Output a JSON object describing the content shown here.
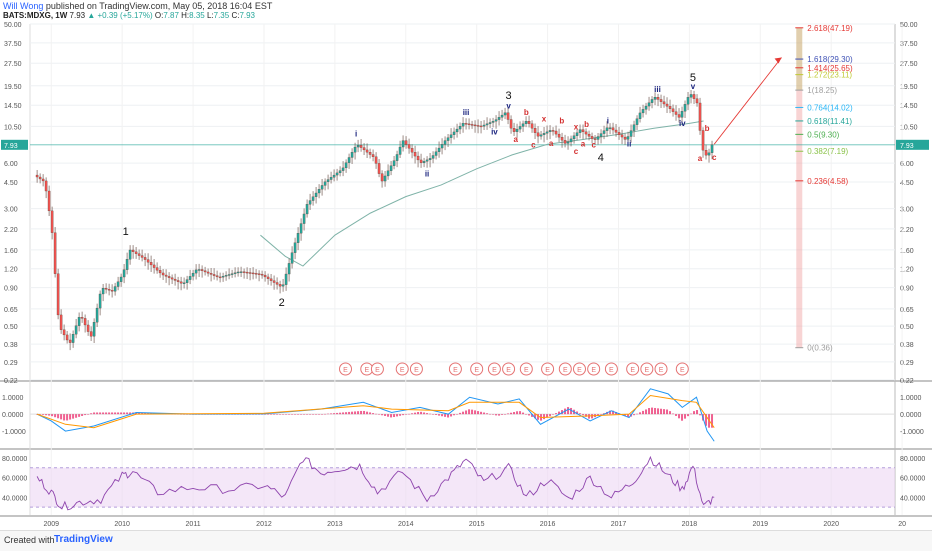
{
  "header": {
    "author": "Will Wong",
    "published": " published on TradingView.com, May 05, 2018 16:04 EST",
    "symbol": "BATS:MDXG, 1W",
    "last": "7.93",
    "change": "▲ +0.39 (+5.17%)",
    "ohlc_o_label": "O:",
    "ohlc_o": "7.87",
    "ohlc_h_label": "H:",
    "ohlc_h": "8.35",
    "ohlc_l_label": "L:",
    "ohlc_l": "7.35",
    "ohlc_c_label": "C:",
    "ohlc_c": "7.93"
  },
  "footer": {
    "created_with": "Created with",
    "brand": "TradingView"
  },
  "colors": {
    "up": "#26a69a",
    "down": "#ef5350",
    "candle_body": "#5d4037",
    "ma": "#7fb3a8",
    "fib_bar_top": "#c8a86b",
    "fib_bar_bottom": "#f0a0a0",
    "rsi_fill": "#ecd7f4",
    "rsi_line": "#8e44ad",
    "macd_hist": "#e91e63",
    "macd_line": "#2196f3",
    "signal_line": "#ff9800"
  },
  "chart_data": {
    "type": "line",
    "title": "",
    "y_scale": "log",
    "price_axis_ticks": [
      "50.00",
      "37.50",
      "27.50",
      "19.50",
      "14.50",
      "10.50",
      "7.93",
      "6.00",
      "4.50",
      "3.00",
      "2.20",
      "1.60",
      "1.20",
      "0.90",
      "0.65",
      "0.50",
      "0.38",
      "0.29",
      "0.22"
    ],
    "x_ticks": [
      "2009",
      "2010",
      "2011",
      "2012",
      "2013",
      "2014",
      "2015",
      "2016",
      "2017",
      "2018",
      "2019",
      "2020",
      "20"
    ],
    "last_price_label": "7.93",
    "price_path": [
      {
        "x": 2008.8,
        "y": 5.0
      },
      {
        "x": 2008.95,
        "y": 4.5
      },
      {
        "x": 2009.05,
        "y": 2.2
      },
      {
        "x": 2009.15,
        "y": 0.5
      },
      {
        "x": 2009.3,
        "y": 0.38
      },
      {
        "x": 2009.45,
        "y": 0.6
      },
      {
        "x": 2009.6,
        "y": 0.42
      },
      {
        "x": 2009.75,
        "y": 0.9
      },
      {
        "x": 2009.9,
        "y": 0.85
      },
      {
        "x": 2010.05,
        "y": 1.1
      },
      {
        "x": 2010.15,
        "y": 1.6
      },
      {
        "x": 2010.35,
        "y": 1.4
      },
      {
        "x": 2010.6,
        "y": 1.1
      },
      {
        "x": 2010.9,
        "y": 0.95
      },
      {
        "x": 2011.1,
        "y": 1.2
      },
      {
        "x": 2011.4,
        "y": 1.05
      },
      {
        "x": 2011.7,
        "y": 1.15
      },
      {
        "x": 2012.0,
        "y": 1.1
      },
      {
        "x": 2012.3,
        "y": 0.9
      },
      {
        "x": 2012.45,
        "y": 1.6
      },
      {
        "x": 2012.65,
        "y": 3.2
      },
      {
        "x": 2012.9,
        "y": 4.5
      },
      {
        "x": 2013.15,
        "y": 5.5
      },
      {
        "x": 2013.35,
        "y": 8.0
      },
      {
        "x": 2013.6,
        "y": 6.5
      },
      {
        "x": 2013.7,
        "y": 4.5
      },
      {
        "x": 2013.9,
        "y": 6.5
      },
      {
        "x": 2014.0,
        "y": 8.5
      },
      {
        "x": 2014.25,
        "y": 6.0
      },
      {
        "x": 2014.4,
        "y": 6.5
      },
      {
        "x": 2014.6,
        "y": 8.5
      },
      {
        "x": 2014.85,
        "y": 11.0
      },
      {
        "x": 2015.1,
        "y": 10.5
      },
      {
        "x": 2015.3,
        "y": 11.5
      },
      {
        "x": 2015.45,
        "y": 13.0
      },
      {
        "x": 2015.55,
        "y": 9.5
      },
      {
        "x": 2015.75,
        "y": 11.5
      },
      {
        "x": 2015.9,
        "y": 9.0
      },
      {
        "x": 2016.1,
        "y": 10.0
      },
      {
        "x": 2016.3,
        "y": 8.0
      },
      {
        "x": 2016.5,
        "y": 10.0
      },
      {
        "x": 2016.7,
        "y": 8.5
      },
      {
        "x": 2016.9,
        "y": 10.5
      },
      {
        "x": 2017.15,
        "y": 8.5
      },
      {
        "x": 2017.35,
        "y": 13.0
      },
      {
        "x": 2017.55,
        "y": 16.5
      },
      {
        "x": 2017.75,
        "y": 14.0
      },
      {
        "x": 2017.9,
        "y": 12.0
      },
      {
        "x": 2018.05,
        "y": 17.5
      },
      {
        "x": 2018.15,
        "y": 15.0
      },
      {
        "x": 2018.22,
        "y": 7.5
      },
      {
        "x": 2018.3,
        "y": 6.5
      },
      {
        "x": 2018.35,
        "y": 7.93
      }
    ],
    "moving_average": [
      {
        "x": 2011.95,
        "y": 2.0
      },
      {
        "x": 2012.3,
        "y": 1.45
      },
      {
        "x": 2012.55,
        "y": 1.25
      },
      {
        "x": 2013.0,
        "y": 2.0
      },
      {
        "x": 2013.5,
        "y": 2.8
      },
      {
        "x": 2014.0,
        "y": 3.6
      },
      {
        "x": 2014.5,
        "y": 4.3
      },
      {
        "x": 2015.0,
        "y": 5.5
      },
      {
        "x": 2015.5,
        "y": 6.8
      },
      {
        "x": 2016.0,
        "y": 8.0
      },
      {
        "x": 2016.5,
        "y": 8.6
      },
      {
        "x": 2017.0,
        "y": 9.3
      },
      {
        "x": 2017.5,
        "y": 10.2
      },
      {
        "x": 2018.0,
        "y": 11.0
      },
      {
        "x": 2018.2,
        "y": 11.4
      }
    ],
    "projection": {
      "from": {
        "x": 2018.35,
        "y": 8.0
      },
      "to": {
        "x": 2019.3,
        "y": 30.0
      }
    },
    "fib_levels": [
      {
        "label": "2.618(47.19)",
        "value": 47.19,
        "color": "#e53935"
      },
      {
        "label": "1.618(29.30)",
        "value": 29.3,
        "color": "#3f51b5"
      },
      {
        "label": "1.414(25.65)",
        "value": 25.65,
        "color": "#e53935"
      },
      {
        "label": "1.272(23.11)",
        "value": 23.11,
        "color": "#c0ca33"
      },
      {
        "label": "1(18.25)",
        "value": 18.25,
        "color": "#9e9e9e"
      },
      {
        "label": "0.764(14.02)",
        "value": 14.02,
        "color": "#29b6f6"
      },
      {
        "label": "0.618(11.41)",
        "value": 11.41,
        "color": "#26a69a"
      },
      {
        "label": "0.5(9.30)",
        "value": 9.3,
        "color": "#4caf50"
      },
      {
        "label": "0.382(7.19)",
        "value": 7.19,
        "color": "#8bc34a"
      },
      {
        "label": "0.236(4.58)",
        "value": 4.58,
        "color": "#e53935"
      },
      {
        "label": "0(0.36)",
        "value": 0.36,
        "color": "#9e9e9e"
      }
    ],
    "wave_labels": [
      {
        "text": "1",
        "x": 2010.05,
        "y": 2.0,
        "color": "#111",
        "size": 11
      },
      {
        "text": "2",
        "x": 2012.25,
        "y": 0.68,
        "color": "#111",
        "size": 11
      },
      {
        "text": "3",
        "x": 2015.45,
        "y": 16.0,
        "color": "#111",
        "size": 11
      },
      {
        "text": "4",
        "x": 2016.75,
        "y": 6.2,
        "color": "#111",
        "size": 11
      },
      {
        "text": "5",
        "x": 2018.05,
        "y": 21.0,
        "color": "#111",
        "size": 11
      },
      {
        "text": "i",
        "x": 2013.3,
        "y": 9.0,
        "color": "#1a237e",
        "size": 8
      },
      {
        "text": "ii",
        "x": 2014.3,
        "y": 4.9,
        "color": "#1a237e",
        "size": 8
      },
      {
        "text": "iii",
        "x": 2014.85,
        "y": 12.5,
        "color": "#1a237e",
        "size": 8
      },
      {
        "text": "iv",
        "x": 2015.25,
        "y": 9.3,
        "color": "#1a237e",
        "size": 8
      },
      {
        "text": "v",
        "x": 2015.45,
        "y": 13.8,
        "color": "#1a237e",
        "size": 8
      },
      {
        "text": "i",
        "x": 2016.85,
        "y": 11.0,
        "color": "#1a237e",
        "size": 8
      },
      {
        "text": "ii",
        "x": 2017.15,
        "y": 7.7,
        "color": "#1a237e",
        "size": 8
      },
      {
        "text": "iii",
        "x": 2017.55,
        "y": 17.8,
        "color": "#1a237e",
        "size": 8
      },
      {
        "text": "iv",
        "x": 2017.9,
        "y": 10.6,
        "color": "#1a237e",
        "size": 8
      },
      {
        "text": "v",
        "x": 2018.05,
        "y": 18.5,
        "color": "#1a237e",
        "size": 8
      },
      {
        "text": "a",
        "x": 2015.55,
        "y": 8.3,
        "color": "#d32f2f",
        "size": 8
      },
      {
        "text": "b",
        "x": 2015.7,
        "y": 12.5,
        "color": "#d32f2f",
        "size": 8
      },
      {
        "text": "c",
        "x": 2015.8,
        "y": 7.6,
        "color": "#d32f2f",
        "size": 8
      },
      {
        "text": "x",
        "x": 2015.95,
        "y": 11.3,
        "color": "#d32f2f",
        "size": 8
      },
      {
        "text": "a",
        "x": 2016.05,
        "y": 7.8,
        "color": "#d32f2f",
        "size": 8
      },
      {
        "text": "b",
        "x": 2016.2,
        "y": 11.0,
        "color": "#d32f2f",
        "size": 8
      },
      {
        "text": "c",
        "x": 2016.4,
        "y": 6.9,
        "color": "#d32f2f",
        "size": 8
      },
      {
        "text": "x",
        "x": 2016.4,
        "y": 10.0,
        "color": "#d32f2f",
        "size": 8
      },
      {
        "text": "a",
        "x": 2016.5,
        "y": 7.7,
        "color": "#d32f2f",
        "size": 8
      },
      {
        "text": "b",
        "x": 2016.55,
        "y": 10.4,
        "color": "#d32f2f",
        "size": 8
      },
      {
        "text": "c",
        "x": 2016.65,
        "y": 7.6,
        "color": "#d32f2f",
        "size": 8
      },
      {
        "text": "b",
        "x": 2018.25,
        "y": 9.8,
        "color": "#d32f2f",
        "size": 8
      },
      {
        "text": "a",
        "x": 2018.15,
        "y": 6.2,
        "color": "#d32f2f",
        "size": 8
      },
      {
        "text": "c",
        "x": 2018.35,
        "y": 6.3,
        "color": "#d32f2f",
        "size": 8
      }
    ],
    "earnings_markers": {
      "label": "E",
      "x": [
        2013.15,
        2013.45,
        2013.6,
        2013.95,
        2014.15,
        2014.7,
        2015.0,
        2015.25,
        2015.45,
        2015.7,
        2016.0,
        2016.25,
        2016.45,
        2016.65,
        2016.9,
        2017.2,
        2017.4,
        2017.6,
        2017.9
      ]
    },
    "macd": {
      "ticks": [
        "1.0000",
        "0.0000",
        "-1.0000"
      ],
      "line": [
        {
          "x": 2008.8,
          "y": 0.0
        },
        {
          "x": 2009.0,
          "y": -0.4
        },
        {
          "x": 2009.2,
          "y": -1.0
        },
        {
          "x": 2009.6,
          "y": -0.7
        },
        {
          "x": 2010.2,
          "y": 0.1
        },
        {
          "x": 2011.0,
          "y": 0.0
        },
        {
          "x": 2012.0,
          "y": 0.02
        },
        {
          "x": 2012.8,
          "y": 0.3
        },
        {
          "x": 2013.4,
          "y": 0.7
        },
        {
          "x": 2013.8,
          "y": 0.1
        },
        {
          "x": 2014.2,
          "y": 0.4
        },
        {
          "x": 2014.6,
          "y": 0.0
        },
        {
          "x": 2014.9,
          "y": 1.0
        },
        {
          "x": 2015.3,
          "y": 0.6
        },
        {
          "x": 2015.6,
          "y": 0.9
        },
        {
          "x": 2015.9,
          "y": -0.6
        },
        {
          "x": 2016.3,
          "y": 0.3
        },
        {
          "x": 2016.6,
          "y": -0.4
        },
        {
          "x": 2016.9,
          "y": 0.2
        },
        {
          "x": 2017.15,
          "y": -0.2
        },
        {
          "x": 2017.45,
          "y": 1.5
        },
        {
          "x": 2017.7,
          "y": 1.2
        },
        {
          "x": 2017.9,
          "y": 0.4
        },
        {
          "x": 2018.1,
          "y": 1.0
        },
        {
          "x": 2018.25,
          "y": -1.0
        },
        {
          "x": 2018.35,
          "y": -1.6
        }
      ],
      "signal": [
        {
          "x": 2008.8,
          "y": 0.0
        },
        {
          "x": 2009.2,
          "y": -0.6
        },
        {
          "x": 2009.6,
          "y": -0.8
        },
        {
          "x": 2010.2,
          "y": 0.0
        },
        {
          "x": 2012.0,
          "y": 0.05
        },
        {
          "x": 2013.4,
          "y": 0.5
        },
        {
          "x": 2013.8,
          "y": 0.3
        },
        {
          "x": 2014.6,
          "y": 0.2
        },
        {
          "x": 2014.9,
          "y": 0.7
        },
        {
          "x": 2015.6,
          "y": 0.7
        },
        {
          "x": 2015.9,
          "y": -0.2
        },
        {
          "x": 2016.6,
          "y": -0.1
        },
        {
          "x": 2017.15,
          "y": 0.0
        },
        {
          "x": 2017.45,
          "y": 1.1
        },
        {
          "x": 2017.9,
          "y": 0.8
        },
        {
          "x": 2018.1,
          "y": 0.7
        },
        {
          "x": 2018.35,
          "y": -0.8
        }
      ]
    },
    "rsi": {
      "ticks": [
        "80.0000",
        "60.0000",
        "40.0000"
      ],
      "upper": 70,
      "lower": 30,
      "line": [
        {
          "x": 2008.8,
          "y": 60
        },
        {
          "x": 2009.0,
          "y": 45
        },
        {
          "x": 2009.15,
          "y": 30
        },
        {
          "x": 2009.4,
          "y": 35
        },
        {
          "x": 2009.7,
          "y": 38
        },
        {
          "x": 2010.0,
          "y": 62
        },
        {
          "x": 2010.15,
          "y": 66
        },
        {
          "x": 2010.5,
          "y": 45
        },
        {
          "x": 2011.0,
          "y": 50
        },
        {
          "x": 2011.5,
          "y": 48
        },
        {
          "x": 2012.0,
          "y": 52
        },
        {
          "x": 2012.3,
          "y": 40
        },
        {
          "x": 2012.55,
          "y": 80
        },
        {
          "x": 2012.8,
          "y": 65
        },
        {
          "x": 2013.1,
          "y": 70
        },
        {
          "x": 2013.35,
          "y": 72
        },
        {
          "x": 2013.6,
          "y": 45
        },
        {
          "x": 2013.95,
          "y": 66
        },
        {
          "x": 2014.3,
          "y": 38
        },
        {
          "x": 2014.6,
          "y": 60
        },
        {
          "x": 2014.85,
          "y": 78
        },
        {
          "x": 2015.1,
          "y": 55
        },
        {
          "x": 2015.45,
          "y": 70
        },
        {
          "x": 2015.7,
          "y": 40
        },
        {
          "x": 2016.0,
          "y": 58
        },
        {
          "x": 2016.3,
          "y": 38
        },
        {
          "x": 2016.6,
          "y": 60
        },
        {
          "x": 2016.9,
          "y": 40
        },
        {
          "x": 2017.2,
          "y": 55
        },
        {
          "x": 2017.45,
          "y": 80
        },
        {
          "x": 2017.7,
          "y": 62
        },
        {
          "x": 2017.9,
          "y": 48
        },
        {
          "x": 2018.05,
          "y": 72
        },
        {
          "x": 2018.2,
          "y": 30
        },
        {
          "x": 2018.35,
          "y": 40
        }
      ]
    }
  }
}
